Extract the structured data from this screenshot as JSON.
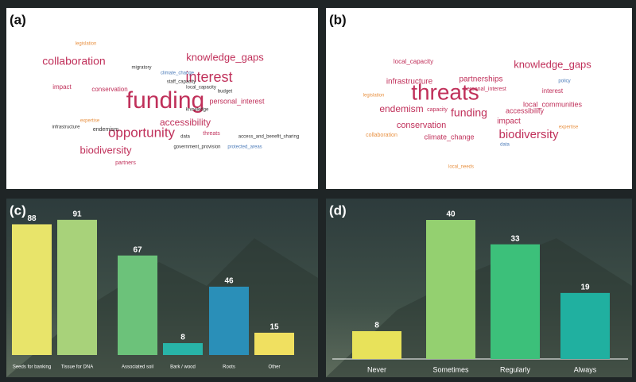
{
  "chart_data": [
    {
      "type": "wordcloud",
      "label": "(a)",
      "words": [
        {
          "text": "funding",
          "weight": 30,
          "color": "#c0305a"
        },
        {
          "text": "interest",
          "weight": 18,
          "color": "#c0305a"
        },
        {
          "text": "opportunity",
          "weight": 17,
          "color": "#c0305a"
        },
        {
          "text": "collaboration",
          "weight": 14,
          "color": "#c0305a"
        },
        {
          "text": "knowledge_gaps",
          "weight": 13,
          "color": "#c0305a"
        },
        {
          "text": "accessibility",
          "weight": 12,
          "color": "#c0305a"
        },
        {
          "text": "biodiversity",
          "weight": 13,
          "color": "#c0305a"
        },
        {
          "text": "personal_interest",
          "weight": 9,
          "color": "#c0305a"
        },
        {
          "text": "conservation",
          "weight": 8,
          "color": "#c0305a"
        },
        {
          "text": "impact",
          "weight": 8,
          "color": "#c0305a"
        },
        {
          "text": "endemism",
          "weight": 7,
          "color": "#333333"
        },
        {
          "text": "partners",
          "weight": 7,
          "color": "#c0305a"
        },
        {
          "text": "threats",
          "weight": 7,
          "color": "#c0305a"
        },
        {
          "text": "expertise",
          "weight": 6,
          "color": "#e89040"
        },
        {
          "text": "local_capacity",
          "weight": 6,
          "color": "#333333"
        },
        {
          "text": "knowledge",
          "weight": 6,
          "color": "#333333"
        },
        {
          "text": "migratory",
          "weight": 6,
          "color": "#333333"
        },
        {
          "text": "climate_change",
          "weight": 6,
          "color": "#4a7ab8"
        },
        {
          "text": "staff_capacity",
          "weight": 6,
          "color": "#333333"
        },
        {
          "text": "budget",
          "weight": 6,
          "color": "#333333"
        },
        {
          "text": "data",
          "weight": 6,
          "color": "#333333"
        },
        {
          "text": "government_provision",
          "weight": 6,
          "color": "#333333"
        },
        {
          "text": "legislation",
          "weight": 6,
          "color": "#e89040"
        },
        {
          "text": "infrastructure",
          "weight": 6,
          "color": "#333333"
        },
        {
          "text": "protected_areas",
          "weight": 6,
          "color": "#4a7ab8"
        },
        {
          "text": "access_and_benefit_sharing",
          "weight": 6,
          "color": "#333333"
        }
      ]
    },
    {
      "type": "wordcloud",
      "label": "(b)",
      "words": [
        {
          "text": "threats",
          "weight": 28,
          "color": "#c0305a"
        },
        {
          "text": "knowledge_gaps",
          "weight": 13,
          "color": "#c0305a"
        },
        {
          "text": "funding",
          "weight": 14,
          "color": "#c0305a"
        },
        {
          "text": "conservation",
          "weight": 11,
          "color": "#c0305a"
        },
        {
          "text": "endemism",
          "weight": 12,
          "color": "#c0305a"
        },
        {
          "text": "biodiversity",
          "weight": 15,
          "color": "#c0305a"
        },
        {
          "text": "partnerships",
          "weight": 10,
          "color": "#c0305a"
        },
        {
          "text": "infrastructure",
          "weight": 10,
          "color": "#c0305a"
        },
        {
          "text": "accessibility",
          "weight": 9,
          "color": "#c0305a"
        },
        {
          "text": "impact",
          "weight": 10,
          "color": "#c0305a"
        },
        {
          "text": "local_communities",
          "weight": 9,
          "color": "#c0305a"
        },
        {
          "text": "climate_change",
          "weight": 9,
          "color": "#c0305a"
        },
        {
          "text": "local_capacity",
          "weight": 8,
          "color": "#c0305a"
        },
        {
          "text": "interest",
          "weight": 8,
          "color": "#c0305a"
        },
        {
          "text": "personal_interest",
          "weight": 7,
          "color": "#c0305a"
        },
        {
          "text": "capacity",
          "weight": 7,
          "color": "#c0305a"
        },
        {
          "text": "collaboration",
          "weight": 7,
          "color": "#e89040"
        },
        {
          "text": "legislation",
          "weight": 6,
          "color": "#e89040"
        },
        {
          "text": "expertise",
          "weight": 6,
          "color": "#e89040"
        },
        {
          "text": "local_needs",
          "weight": 6,
          "color": "#e89040"
        },
        {
          "text": "data",
          "weight": 6,
          "color": "#4a7ab8"
        },
        {
          "text": "policy",
          "weight": 6,
          "color": "#4a7ab8"
        }
      ]
    },
    {
      "type": "bar",
      "label": "(c)",
      "categories": [
        "Seeds for banking",
        "Tissue for DNA",
        "Associated soil",
        "Bark / wood",
        "Roots",
        "Other"
      ],
      "values": [
        88,
        91,
        67,
        8,
        46,
        15
      ],
      "colors": [
        "#e8e46a",
        "#a8d27a",
        "#6cc27a",
        "#28b4a8",
        "#2a8fb8",
        "#f0e060"
      ]
    },
    {
      "type": "bar",
      "label": "(d)",
      "categories": [
        "Never",
        "Sometimes",
        "Regularly",
        "Always"
      ],
      "values": [
        8,
        40,
        33,
        19
      ],
      "colors": [
        "#e8e25a",
        "#94d070",
        "#3cc07a",
        "#20b0a0"
      ]
    }
  ]
}
